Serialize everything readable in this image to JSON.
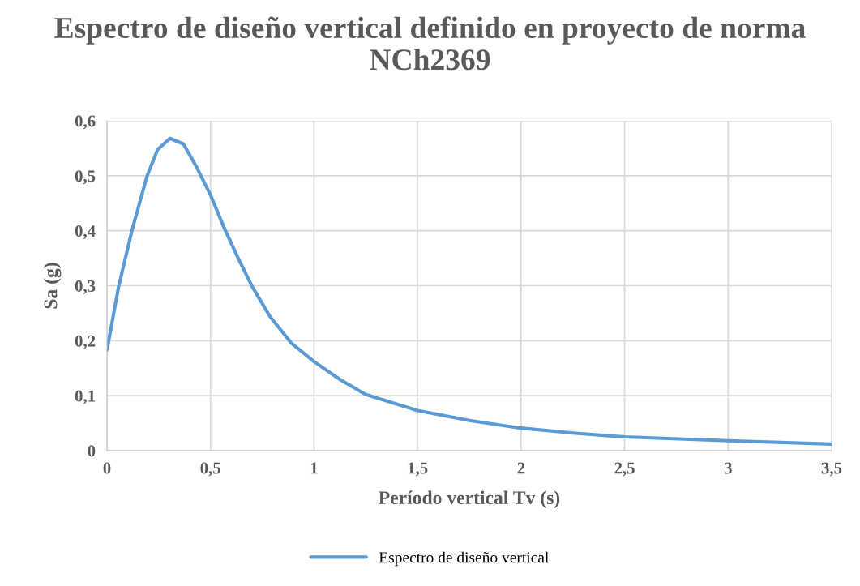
{
  "chart_data": {
    "type": "line",
    "title": "Espectro de diseño vertical definido en proyecto de norma NCh2369",
    "xlabel": "Período vertical Tv (s)",
    "ylabel": "Sa (g)",
    "xlim": [
      0,
      3.5
    ],
    "ylim": [
      0,
      0.6
    ],
    "xticks": [
      {
        "value": 0,
        "label": "0"
      },
      {
        "value": 0.5,
        "label": "0,5"
      },
      {
        "value": 1,
        "label": "1"
      },
      {
        "value": 1.5,
        "label": "1,5"
      },
      {
        "value": 2,
        "label": "2"
      },
      {
        "value": 2.5,
        "label": "2,5"
      },
      {
        "value": 3,
        "label": "3"
      },
      {
        "value": 3.5,
        "label": "3,5"
      }
    ],
    "yticks": [
      {
        "value": 0,
        "label": "0"
      },
      {
        "value": 0.1,
        "label": "0,1"
      },
      {
        "value": 0.2,
        "label": "0,2"
      },
      {
        "value": 0.3,
        "label": "0,3"
      },
      {
        "value": 0.4,
        "label": "0,4"
      },
      {
        "value": 0.5,
        "label": "0,5"
      },
      {
        "value": 0.6,
        "label": "0,6"
      }
    ],
    "grid": true,
    "legend": "bottom",
    "marker": "none",
    "line_style": "solid",
    "series": [
      {
        "name": "Espectro de diseño vertical",
        "color": "#5b9bd5",
        "x": [
          0,
          0.056,
          0.121,
          0.193,
          0.245,
          0.304,
          0.369,
          0.435,
          0.5,
          0.565,
          0.631,
          0.702,
          0.787,
          0.892,
          1.0,
          1.127,
          1.25,
          1.5,
          1.75,
          2.0,
          2.25,
          2.5,
          3.0,
          3.5
        ],
        "values": [
          0.183,
          0.298,
          0.401,
          0.499,
          0.548,
          0.568,
          0.558,
          0.514,
          0.465,
          0.406,
          0.352,
          0.298,
          0.244,
          0.195,
          0.162,
          0.129,
          0.102,
          0.073,
          0.055,
          0.041,
          0.032,
          0.025,
          0.018,
          0.012
        ]
      }
    ]
  }
}
